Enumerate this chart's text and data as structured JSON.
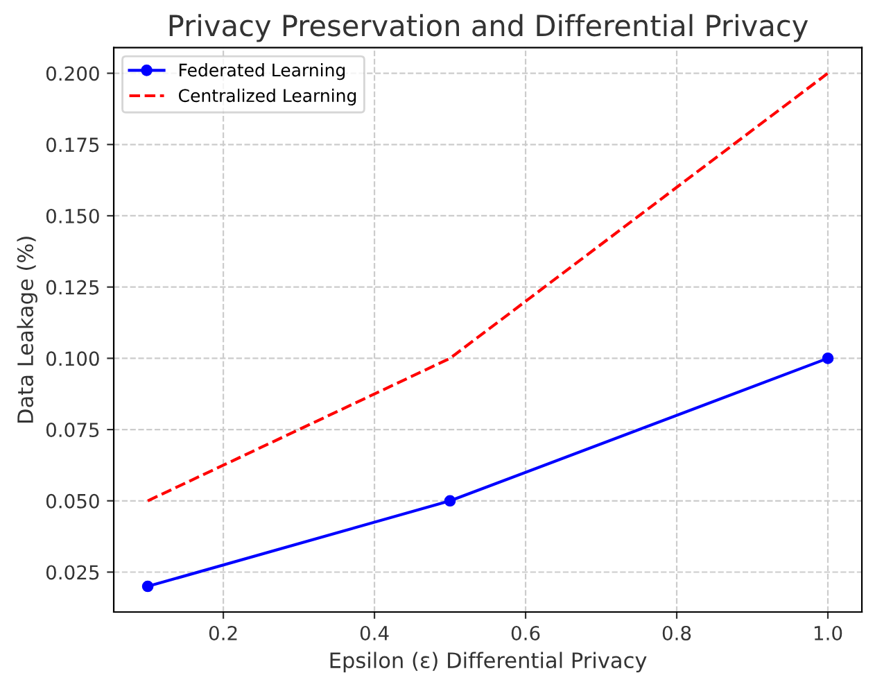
{
  "chart_data": {
    "type": "line",
    "title": "Privacy Preservation and Differential Privacy",
    "xlabel": "Epsilon (ε) Differential Privacy",
    "ylabel": "Data Leakage (%)",
    "x": [
      0.1,
      0.5,
      1.0
    ],
    "series": [
      {
        "name": "Federated Learning",
        "color": "#0000ff",
        "values": [
          0.02,
          0.05,
          0.1
        ],
        "marker": "circle",
        "line_style": "solid"
      },
      {
        "name": "Centralized Learning",
        "color": "#ff0000",
        "values": [
          0.05,
          0.1,
          0.2
        ],
        "marker": "none",
        "line_style": "dashed"
      }
    ],
    "xlim": [
      0.055,
      1.045
    ],
    "ylim": [
      0.011,
      0.209
    ],
    "xticks": [
      {
        "value": 0.2,
        "label": "0.2"
      },
      {
        "value": 0.4,
        "label": "0.4"
      },
      {
        "value": 0.6,
        "label": "0.6"
      },
      {
        "value": 0.8,
        "label": "0.8"
      },
      {
        "value": 1.0,
        "label": "1.0"
      }
    ],
    "yticks": [
      {
        "value": 0.025,
        "label": "0.025"
      },
      {
        "value": 0.05,
        "label": "0.050"
      },
      {
        "value": 0.075,
        "label": "0.075"
      },
      {
        "value": 0.1,
        "label": "0.100"
      },
      {
        "value": 0.125,
        "label": "0.125"
      },
      {
        "value": 0.15,
        "label": "0.150"
      },
      {
        "value": 0.175,
        "label": "0.175"
      },
      {
        "value": 0.2,
        "label": "0.200"
      }
    ],
    "grid": true,
    "legend": "top left"
  }
}
